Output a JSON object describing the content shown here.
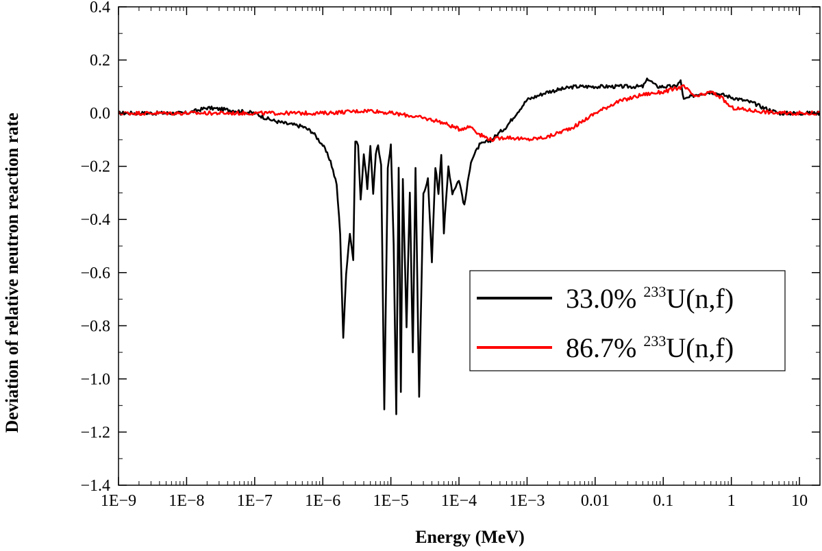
{
  "chart_data": {
    "type": "line",
    "title": "",
    "xlabel": "Energy (MeV)",
    "ylabel": "Deviation of relative neutron reaction rate",
    "xscale": "log",
    "xlim": [
      1e-09,
      20
    ],
    "ylim": [
      -1.4,
      0.4
    ],
    "xticks": [
      1e-09,
      1e-08,
      1e-07,
      1e-06,
      1e-05,
      0.0001,
      0.001,
      0.01,
      0.1,
      1,
      10
    ],
    "xtick_labels": [
      "1E−9",
      "1E−8",
      "1E−7",
      "1E−6",
      "1E−5",
      "1E−4",
      "1E−3",
      "0.01",
      "0.1",
      "1",
      "10"
    ],
    "yticks": [
      0.4,
      0.2,
      0.0,
      -0.2,
      -0.4,
      -0.6,
      -0.8,
      -1.0,
      -1.2,
      -1.4
    ],
    "ytick_labels": [
      "0.4",
      "0.2",
      "0.0",
      "−0.2",
      "−0.4",
      "−0.6",
      "−0.8",
      "−1.0",
      "−1.2",
      "−1.4"
    ],
    "grid": false,
    "legend_position": "right",
    "series": [
      {
        "name": "33.0% 233U(n,f)",
        "legend_pre": "33.0% ",
        "legend_sup": "233",
        "legend_post": "U(n,f)",
        "color": "#000000",
        "points": [
          [
            1e-09,
            0.0
          ],
          [
            1e-08,
            0.0
          ],
          [
            2e-08,
            0.02
          ],
          [
            5e-08,
            0.01
          ],
          [
            1e-07,
            0.0
          ],
          [
            1.5e-07,
            -0.02
          ],
          [
            2e-07,
            -0.03
          ],
          [
            3e-07,
            -0.04
          ],
          [
            5e-07,
            -0.05
          ],
          [
            7e-07,
            -0.07
          ],
          [
            1e-06,
            -0.12
          ],
          [
            1.3e-06,
            -0.18
          ],
          [
            1.6e-06,
            -0.27
          ],
          [
            1.8e-06,
            -0.45
          ],
          [
            2e-06,
            -0.85
          ],
          [
            2.2e-06,
            -0.6
          ],
          [
            2.5e-06,
            -0.45
          ],
          [
            2.8e-06,
            -0.55
          ],
          [
            3e-06,
            -0.1
          ],
          [
            3.3e-06,
            -0.12
          ],
          [
            3.6e-06,
            -0.33
          ],
          [
            4e-06,
            -0.15
          ],
          [
            4.5e-06,
            -0.28
          ],
          [
            5e-06,
            -0.13
          ],
          [
            5.5e-06,
            -0.3
          ],
          [
            6e-06,
            -0.15
          ],
          [
            6.5e-06,
            -0.12
          ],
          [
            7.2e-06,
            -0.2
          ],
          [
            8e-06,
            -1.12
          ],
          [
            9e-06,
            -0.2
          ],
          [
            1e-05,
            -0.12
          ],
          [
            1.1e-05,
            -0.5
          ],
          [
            1.2e-05,
            -1.13
          ],
          [
            1.3e-05,
            -0.2
          ],
          [
            1.4e-05,
            -1.05
          ],
          [
            1.5e-05,
            -0.25
          ],
          [
            1.7e-05,
            -0.8
          ],
          [
            1.9e-05,
            -0.3
          ],
          [
            2.1e-05,
            -0.9
          ],
          [
            2.3e-05,
            -0.2
          ],
          [
            2.6e-05,
            -1.07
          ],
          [
            3e-05,
            -0.3
          ],
          [
            3.5e-05,
            -0.25
          ],
          [
            4e-05,
            -0.56
          ],
          [
            4.5e-05,
            -0.2
          ],
          [
            5e-05,
            -0.3
          ],
          [
            5.5e-05,
            -0.15
          ],
          [
            6e-05,
            -0.45
          ],
          [
            7e-05,
            -0.2
          ],
          [
            8e-05,
            -0.3
          ],
          [
            0.0001,
            -0.25
          ],
          [
            0.00012,
            -0.35
          ],
          [
            0.00015,
            -0.18
          ],
          [
            0.0002,
            -0.12
          ],
          [
            0.0003,
            -0.1
          ],
          [
            0.0005,
            -0.05
          ],
          [
            0.0007,
            0.0
          ],
          [
            0.001,
            0.05
          ],
          [
            0.002,
            0.08
          ],
          [
            0.005,
            0.1
          ],
          [
            0.01,
            0.1
          ],
          [
            0.02,
            0.1
          ],
          [
            0.05,
            0.1
          ],
          [
            0.06,
            0.13
          ],
          [
            0.08,
            0.1
          ],
          [
            0.1,
            0.1
          ],
          [
            0.15,
            0.1
          ],
          [
            0.18,
            0.12
          ],
          [
            0.2,
            0.05
          ],
          [
            0.3,
            0.07
          ],
          [
            0.5,
            0.08
          ],
          [
            1,
            0.06
          ],
          [
            2,
            0.04
          ],
          [
            3,
            0.02
          ],
          [
            5,
            0.0
          ],
          [
            10,
            0.0
          ],
          [
            20,
            0.0
          ]
        ]
      },
      {
        "name": "86.7% 233U(n,f)",
        "legend_pre": "86.7% ",
        "legend_sup": "233",
        "legend_post": "U(n,f)",
        "color": "#ff0000",
        "points": [
          [
            1e-09,
            0.0
          ],
          [
            1e-08,
            0.0
          ],
          [
            1e-07,
            0.0
          ],
          [
            1e-06,
            0.0
          ],
          [
            5e-06,
            0.01
          ],
          [
            1e-05,
            0.0
          ],
          [
            2e-05,
            -0.01
          ],
          [
            5e-05,
            -0.03
          ],
          [
            0.0001,
            -0.06
          ],
          [
            0.00015,
            -0.05
          ],
          [
            0.0002,
            -0.08
          ],
          [
            0.0003,
            -0.1
          ],
          [
            0.0005,
            -0.09
          ],
          [
            0.001,
            -0.1
          ],
          [
            0.002,
            -0.09
          ],
          [
            0.005,
            -0.05
          ],
          [
            0.01,
            0.0
          ],
          [
            0.02,
            0.04
          ],
          [
            0.05,
            0.07
          ],
          [
            0.1,
            0.08
          ],
          [
            0.2,
            0.1
          ],
          [
            0.3,
            0.06
          ],
          [
            0.5,
            0.08
          ],
          [
            0.7,
            0.06
          ],
          [
            1,
            0.02
          ],
          [
            2,
            0.01
          ],
          [
            5,
            0.0
          ],
          [
            10,
            0.0
          ],
          [
            20,
            0.0
          ]
        ]
      }
    ]
  }
}
